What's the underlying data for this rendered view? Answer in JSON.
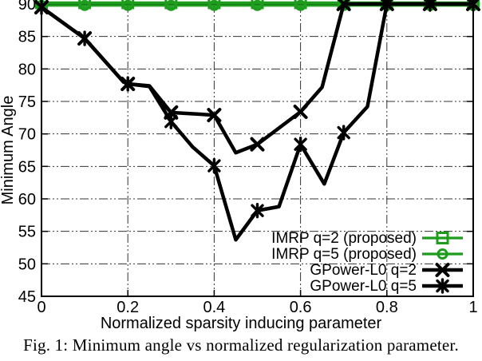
{
  "figure": {
    "caption": "Fig. 1: Minimum angle vs normalized regularization parameter."
  },
  "chart_data": {
    "type": "line",
    "title": "",
    "xlabel": "Normalized sparsity inducing parameter",
    "ylabel": "Minimum Angle",
    "xlim": [
      0,
      1
    ],
    "ylim": [
      45,
      90
    ],
    "xticks": [
      0,
      0.2,
      0.4,
      0.6,
      0.8,
      1
    ],
    "xtick_labels": [
      "0",
      "0.2",
      "0.4",
      "0.6",
      "0.8",
      "1"
    ],
    "yticks": [
      45,
      50,
      55,
      60,
      65,
      70,
      75,
      80,
      85,
      90
    ],
    "ytick_labels": [
      "45",
      "50",
      "55",
      "60",
      "65",
      "70",
      "75",
      "80",
      "85",
      "90"
    ],
    "grid": true,
    "legend_position": "inside-bottom-right",
    "accent_green": "#1e9c1e",
    "line_black": "#000000",
    "series": [
      {
        "name": "IMRP q=2 (proposed)",
        "color": "#1e9c1e",
        "marker": "open-square",
        "points": [
          [
            0,
            90
          ],
          [
            0.1,
            90
          ],
          [
            0.2,
            90
          ],
          [
            0.3,
            90
          ],
          [
            0.4,
            90
          ],
          [
            0.5,
            90
          ],
          [
            0.6,
            90
          ],
          [
            0.7,
            90
          ],
          [
            0.8,
            90
          ],
          [
            0.9,
            90
          ],
          [
            1,
            90
          ]
        ]
      },
      {
        "name": "IMRP q=5 (proposed)",
        "color": "#1e9c1e",
        "marker": "open-circle",
        "points": [
          [
            0,
            90
          ],
          [
            0.1,
            90
          ],
          [
            0.2,
            90
          ],
          [
            0.3,
            90
          ],
          [
            0.4,
            90
          ],
          [
            0.5,
            90
          ],
          [
            0.6,
            90
          ],
          [
            0.7,
            90
          ],
          [
            0.8,
            90
          ],
          [
            0.9,
            90
          ],
          [
            1,
            90
          ]
        ]
      },
      {
        "name": "GPower-L0 q=2",
        "color": "#000000",
        "marker": "cross",
        "points": [
          [
            0,
            89.5
          ],
          [
            0.1,
            84.7
          ],
          [
            0.19,
            78.0
          ],
          [
            0.2,
            77.7
          ],
          [
            0.25,
            77.4
          ],
          [
            0.3,
            73.3
          ],
          [
            0.4,
            72.9
          ],
          [
            0.45,
            67.1
          ],
          [
            0.5,
            68.4
          ],
          [
            0.6,
            73.4
          ],
          [
            0.65,
            77.2
          ],
          [
            0.7,
            90
          ],
          [
            0.8,
            90
          ],
          [
            0.9,
            90
          ],
          [
            1,
            90
          ]
        ],
        "marker_points": [
          [
            0,
            89.5
          ],
          [
            0.1,
            84.7
          ],
          [
            0.2,
            77.7
          ],
          [
            0.3,
            73.3
          ],
          [
            0.4,
            72.9
          ],
          [
            0.5,
            68.4
          ],
          [
            0.6,
            73.4
          ],
          [
            0.7,
            90
          ],
          [
            0.8,
            90
          ],
          [
            0.9,
            90
          ],
          [
            1,
            90
          ]
        ]
      },
      {
        "name": "GPower-L0 q=5",
        "color": "#000000",
        "marker": "star",
        "points": [
          [
            0,
            89.5
          ],
          [
            0.1,
            84.7
          ],
          [
            0.19,
            78.0
          ],
          [
            0.2,
            77.7
          ],
          [
            0.25,
            77.3
          ],
          [
            0.3,
            71.9
          ],
          [
            0.35,
            68.0
          ],
          [
            0.4,
            65.1
          ],
          [
            0.45,
            53.7
          ],
          [
            0.5,
            58.2
          ],
          [
            0.55,
            58.8
          ],
          [
            0.6,
            68.4
          ],
          [
            0.655,
            62.3
          ],
          [
            0.7,
            70.2
          ],
          [
            0.755,
            74.2
          ],
          [
            0.8,
            90
          ],
          [
            0.9,
            90
          ],
          [
            1,
            90
          ]
        ],
        "marker_points": [
          [
            0,
            89.5
          ],
          [
            0.1,
            84.7
          ],
          [
            0.2,
            77.7
          ],
          [
            0.3,
            71.9
          ],
          [
            0.4,
            65.1
          ],
          [
            0.5,
            58.2
          ],
          [
            0.6,
            68.4
          ],
          [
            0.7,
            70.2
          ],
          [
            0.8,
            90
          ],
          [
            0.9,
            90
          ],
          [
            1,
            90
          ]
        ]
      }
    ]
  }
}
